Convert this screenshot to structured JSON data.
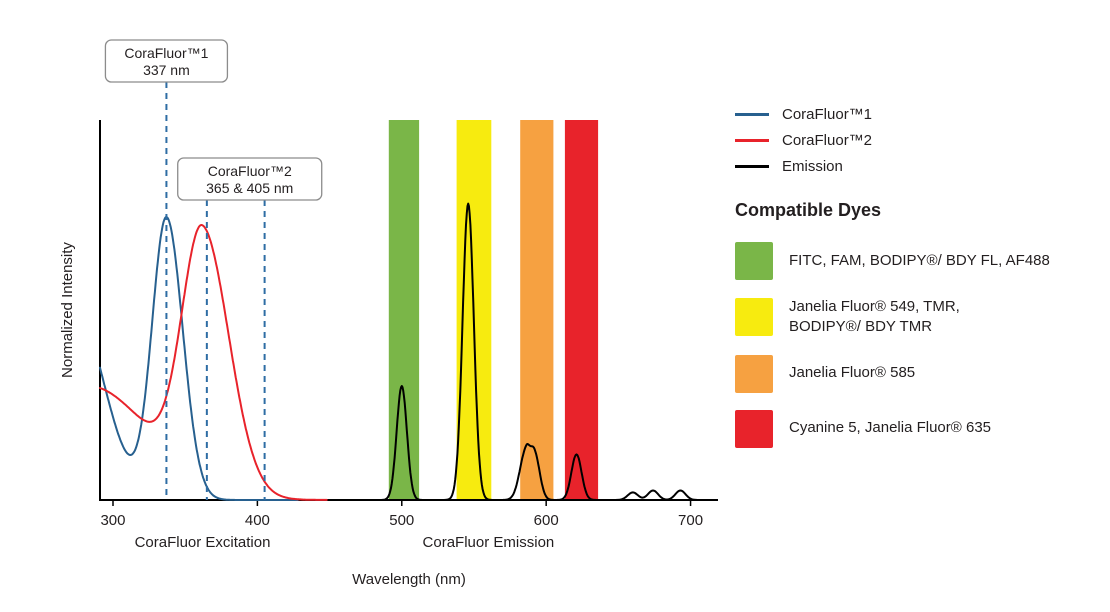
{
  "chart_data": {
    "type": "line",
    "title": "",
    "xlabel": "Wavelength (nm)",
    "ylabel": "Normalized Intensity",
    "x_range": [
      291,
      719
    ],
    "y_range": [
      0,
      1.0
    ],
    "x_ticks": [
      300,
      400,
      500,
      600,
      700
    ],
    "grid": false,
    "legend_position": "right",
    "axis_section_labels": [
      {
        "text": "CoraFluor Excitation",
        "x": 362
      },
      {
        "text": "CoraFluor Emission",
        "x": 560
      }
    ],
    "annotations": [
      {
        "title": "CoraFluor™1",
        "subtitle": "337 nm",
        "lines_nm": [
          337
        ]
      },
      {
        "title": "CoraFluor™2",
        "subtitle": "365 & 405 nm",
        "lines_nm": [
          365,
          405
        ]
      }
    ],
    "annotation_line_color": "#2e6da4",
    "peak_model": "sum of asymmetric gaussians; c = wavelength (nm), h = normalized intensity, wl/wr = left/right width (nm)",
    "series": [
      {
        "name": "CoraFluor™1",
        "color": "#27608f",
        "range": [
          291,
          428
        ],
        "peaks": [
          {
            "c": 337,
            "h": 0.74,
            "wl": 14,
            "wr": 16
          },
          {
            "c": 272,
            "h": 0.52,
            "wl": 30,
            "wr": 30
          }
        ]
      },
      {
        "name": "CoraFluor™2",
        "color": "#e8232b",
        "range": [
          291,
          448
        ],
        "peaks": [
          {
            "c": 362,
            "h": 0.67,
            "wl": 20,
            "wr": 26
          },
          {
            "c": 283,
            "h": 0.3,
            "wl": 60,
            "wr": 60
          }
        ]
      },
      {
        "name": "Emission",
        "color": "#000000",
        "range": [
          455,
          718
        ],
        "peaks": [
          {
            "c": 500,
            "h": 0.3,
            "wl": 5,
            "wr": 5
          },
          {
            "c": 546,
            "h": 0.78,
            "wl": 5.5,
            "wr": 5.5
          },
          {
            "c": 586,
            "h": 0.13,
            "wl": 6,
            "wr": 4
          },
          {
            "c": 592,
            "h": 0.12,
            "wl": 4,
            "wr": 5
          },
          {
            "c": 621,
            "h": 0.12,
            "wl": 5,
            "wr": 5
          },
          {
            "c": 660,
            "h": 0.02,
            "wl": 5,
            "wr": 5
          },
          {
            "c": 674,
            "h": 0.025,
            "wl": 5,
            "wr": 5
          },
          {
            "c": 693,
            "h": 0.025,
            "wl": 5,
            "wr": 5
          }
        ]
      }
    ],
    "bands_source": "compatible_dyes.items"
  },
  "legend": {
    "items": [
      {
        "label": "CoraFluor™1",
        "color": "#27608f"
      },
      {
        "label": "CoraFluor™2",
        "color": "#e8232b"
      },
      {
        "label": "Emission",
        "color": "#000000"
      }
    ]
  },
  "compatible_dyes": {
    "title": "Compatible Dyes",
    "items": [
      {
        "label": "FITC, FAM, BODIPY®/ BDY FL, AF488",
        "color": "#7ab648",
        "band_nm": [
          491,
          512
        ]
      },
      {
        "label": "Janelia Fluor® 549, TMR,\nBODIPY®/ BDY TMR",
        "color": "#f7eb0f",
        "band_nm": [
          538,
          562
        ]
      },
      {
        "label": "Janelia Fluor® 585",
        "color": "#f6a141",
        "band_nm": [
          582,
          605
        ]
      },
      {
        "label": "Cyanine 5, Janelia Fluor® 635",
        "color": "#e8232b",
        "band_nm": [
          613,
          636
        ]
      }
    ]
  }
}
